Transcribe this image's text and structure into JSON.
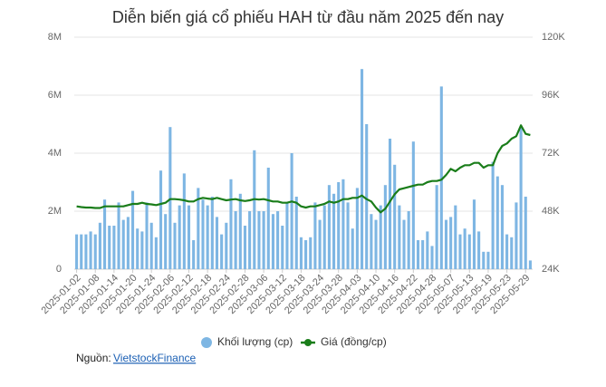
{
  "chart_data": {
    "type": "bar",
    "title": "Diễn biến giá cổ phiếu HAH từ đầu năm 2025 đến nay",
    "categories": [
      "2025-01-02",
      null,
      null,
      null,
      "2025-01-08",
      null,
      null,
      null,
      "2025-01-14",
      null,
      null,
      null,
      "2025-01-20",
      null,
      null,
      null,
      "2025-01-24",
      null,
      null,
      null,
      "2025-02-06",
      null,
      null,
      null,
      "2025-02-12",
      null,
      null,
      null,
      "2025-02-18",
      null,
      null,
      null,
      "2025-02-24",
      null,
      null,
      null,
      "2025-02-28",
      null,
      null,
      null,
      "2025-03-06",
      null,
      null,
      null,
      "2025-03-12",
      null,
      null,
      null,
      "2025-03-18",
      null,
      null,
      null,
      "2025-03-24",
      null,
      null,
      null,
      "2025-03-28",
      null,
      null,
      null,
      "2025-04-03",
      null,
      null,
      null,
      "2025-04-10",
      null,
      null,
      null,
      "2025-04-16",
      null,
      null,
      null,
      "2025-04-22",
      null,
      null,
      null,
      "2025-04-28",
      null,
      null,
      null,
      "2025-05-07",
      null,
      null,
      null,
      "2025-05-13",
      null,
      null,
      null,
      "2025-05-19",
      null,
      null,
      null,
      "2025-05-23",
      null,
      null,
      null,
      "2025-05-29",
      null
    ],
    "series": [
      {
        "name": "Khối lượng (cp)",
        "type": "bar",
        "color": "#7eb6e3",
        "values": [
          1200000,
          1200000,
          1200000,
          1300000,
          1200000,
          1600000,
          2400000,
          1500000,
          1500000,
          2300000,
          1700000,
          1800000,
          2700000,
          1400000,
          1300000,
          2300000,
          1600000,
          1100000,
          3400000,
          1900000,
          4900000,
          1600000,
          2200000,
          3300000,
          2200000,
          1000000,
          2800000,
          2400000,
          2200000,
          2500000,
          1800000,
          1200000,
          1600000,
          3100000,
          2000000,
          2600000,
          1500000,
          2000000,
          4100000,
          2000000,
          2000000,
          3500000,
          1900000,
          2000000,
          1500000,
          2300000,
          4000000,
          2500000,
          1100000,
          1000000,
          1100000,
          2300000,
          1700000,
          2200000,
          2900000,
          2600000,
          3000000,
          3100000,
          2300000,
          1400000,
          2800000,
          6900000,
          5000000,
          1900000,
          1700000,
          2200000,
          2900000,
          4500000,
          3600000,
          2200000,
          1700000,
          2000000,
          4400000,
          1000000,
          1000000,
          1300000,
          800000,
          2900000,
          6300000,
          1700000,
          1800000,
          2200000,
          1200000,
          1400000,
          1200000,
          2400000,
          1300000,
          600000,
          600000,
          3700000,
          3200000,
          2900000,
          1200000,
          1100000,
          2300000,
          4900000,
          2500000,
          300000
        ]
      },
      {
        "name": "Giá (đồng/cp)",
        "type": "line",
        "axis": "y2",
        "color": "#1a7d1a",
        "values": [
          50000,
          49700,
          49500,
          49500,
          49300,
          49300,
          50000,
          50000,
          50000,
          50000,
          50000,
          50500,
          51000,
          51000,
          51500,
          51000,
          50800,
          50500,
          51000,
          51500,
          53000,
          53000,
          52800,
          52500,
          52000,
          52000,
          53000,
          53500,
          53200,
          53000,
          53500,
          53000,
          52500,
          52800,
          53000,
          52500,
          52200,
          52500,
          53000,
          52800,
          53000,
          52500,
          52000,
          52000,
          51500,
          51500,
          52000,
          51500,
          50000,
          49500,
          50000,
          50000,
          50500,
          51000,
          52000,
          51500,
          52000,
          53000,
          53000,
          53500,
          53500,
          54500,
          53000,
          52000,
          49500,
          47500,
          49000,
          52000,
          55000,
          57000,
          57500,
          58000,
          58500,
          59000,
          59000,
          60000,
          60500,
          60500,
          61000,
          63000,
          65500,
          64500,
          66000,
          67000,
          67000,
          68000,
          68000,
          66000,
          67000,
          67000,
          72000,
          75000,
          76000,
          78000,
          79000,
          83500,
          80000,
          79500
        ]
      }
    ],
    "ylim": [
      0,
      8000000
    ],
    "yticks": [
      0,
      {
        "value": 2000000,
        "label": "2M"
      },
      {
        "value": 4000000,
        "label": "4M"
      },
      {
        "value": 6000000,
        "label": "6M"
      },
      {
        "value": 8000000,
        "label": "8M"
      }
    ],
    "y2lim": [
      24000,
      120000
    ],
    "y2ticks": [
      {
        "value": 24000,
        "label": "24K"
      },
      {
        "value": 48000,
        "label": "48K"
      },
      {
        "value": 72000,
        "label": "72K"
      },
      {
        "value": 96000,
        "label": "96K"
      },
      {
        "value": 120000,
        "label": "120K"
      }
    ],
    "grid": true,
    "legend": "bottom",
    "source_label": "Nguồn:",
    "source_link": "VietstockFinance"
  }
}
